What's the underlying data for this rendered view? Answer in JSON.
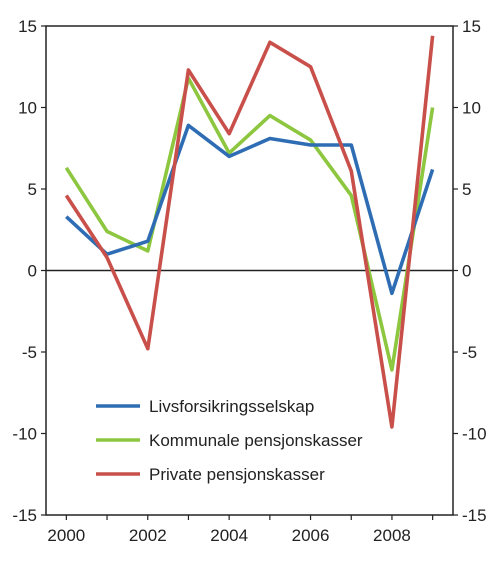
{
  "chart_data": {
    "type": "line",
    "x": [
      2000,
      2001,
      2002,
      2003,
      2004,
      2005,
      2006,
      2007,
      2008,
      2009
    ],
    "x_tick_labels": [
      "2000",
      "2002",
      "2004",
      "2006",
      "2008"
    ],
    "ylim": [
      -15,
      15
    ],
    "y_tick_labels": [
      "15",
      "10",
      "5",
      "0",
      "-5",
      "-10",
      "-15"
    ],
    "grid": false,
    "legend_position": "bottom-left",
    "series": [
      {
        "name": "Livsforsikringsselskap",
        "color": "#2e6db4",
        "values": [
          3.3,
          1.0,
          1.8,
          8.9,
          7.0,
          8.1,
          7.7,
          7.7,
          -1.4,
          6.2
        ]
      },
      {
        "name": "Kommunale pensjonskasser",
        "color": "#8dc63f",
        "values": [
          6.3,
          2.4,
          1.2,
          11.8,
          7.2,
          9.5,
          8.0,
          4.6,
          -6.1,
          10.0
        ]
      },
      {
        "name": "Private pensjonskasser",
        "color": "#c9504a",
        "values": [
          4.6,
          0.8,
          -4.8,
          12.3,
          8.4,
          14.0,
          12.5,
          6.1,
          -9.6,
          14.4
        ]
      }
    ]
  }
}
